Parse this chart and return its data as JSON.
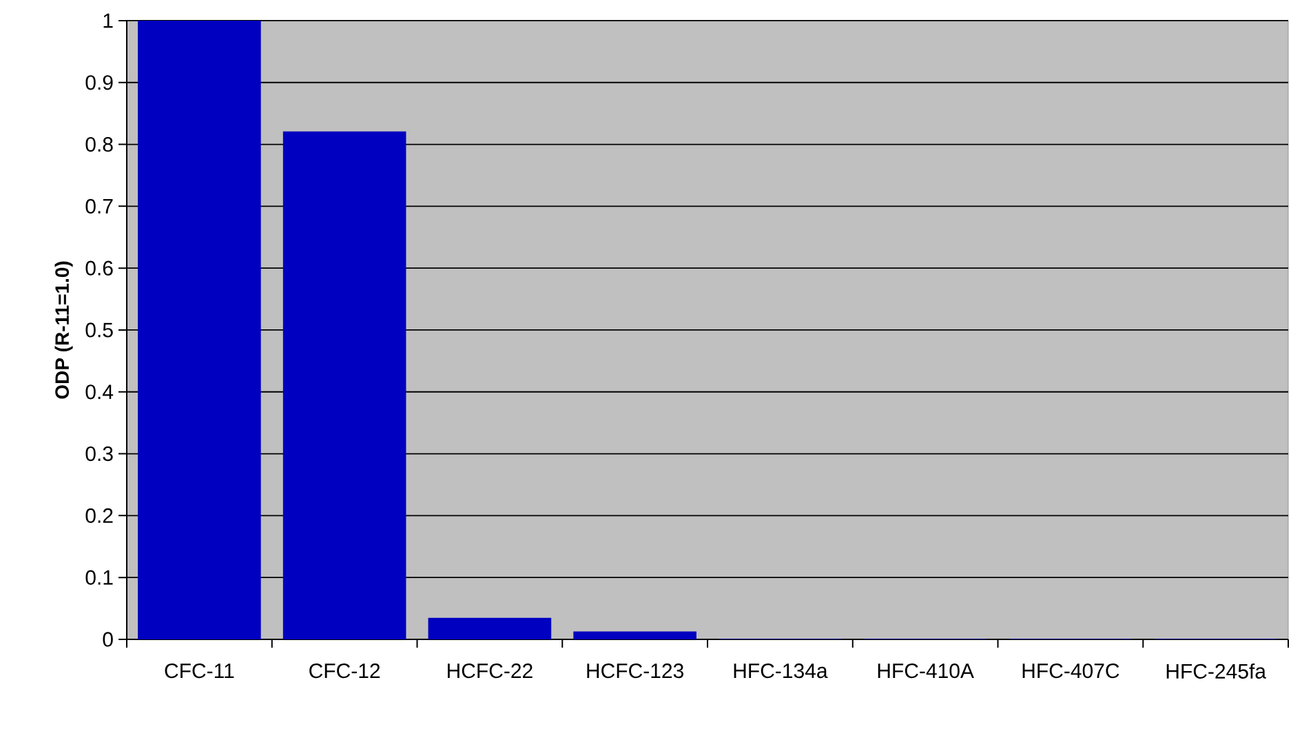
{
  "chart_data": {
    "type": "bar",
    "ylabel": "ODP (R-11=1.0)",
    "categories": [
      "CFC-11",
      "CFC-12",
      "HCFC-22",
      "HCFC-123",
      "HFC-134a",
      "HFC-410A",
      "HFC-407C",
      "HFC-245fa"
    ],
    "values": [
      1,
      0.82,
      0.034,
      0.012,
      0,
      0,
      0,
      0
    ],
    "color": "#0000c0",
    "ylim": [
      0,
      1
    ],
    "yticks": [
      0,
      0.1,
      0.2,
      0.3,
      0.4,
      0.5,
      0.6,
      0.7,
      0.8,
      0.9,
      1
    ],
    "grid": "y"
  }
}
